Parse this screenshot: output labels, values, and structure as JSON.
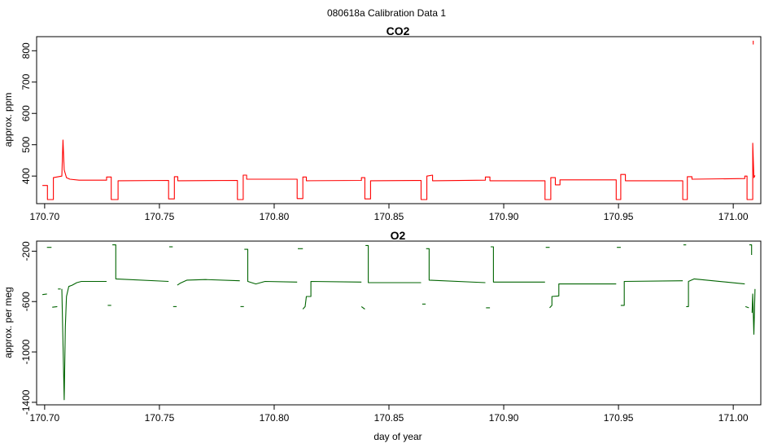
{
  "page_title": "080618a   Calibration Data 1",
  "chart_data": [
    {
      "type": "line",
      "title": "CO2",
      "xlabel": "",
      "ylabel": "approx. ppm",
      "xlim": [
        170.6965,
        171.012
      ],
      "ylim": [
        312,
        845
      ],
      "x_ticks": [
        170.7,
        170.75,
        170.8,
        170.85,
        170.9,
        170.95,
        171.0
      ],
      "x_tick_labels": [
        "170.70",
        "170.75",
        "170.80",
        "170.85",
        "170.90",
        "170.95",
        "171.00"
      ],
      "y_ticks": [
        400,
        500,
        600,
        700,
        800
      ],
      "y_tick_labels": [
        "400",
        "500",
        "600",
        "700",
        "800"
      ],
      "grid": false,
      "color": "#ff0000",
      "series": [
        {
          "segments": [
            [
              [
                170.699,
                370
              ],
              [
                170.7012,
                370
              ],
              [
                170.7012,
                325
              ],
              [
                170.7038,
                325
              ],
              [
                170.7038,
                395
              ],
              [
                170.706,
                398
              ],
              [
                170.7075,
                400
              ],
              [
                170.708,
                515
              ],
              [
                170.7085,
                420
              ],
              [
                170.7095,
                395
              ],
              [
                170.711,
                390
              ],
              [
                170.715,
                387
              ],
              [
                170.727,
                387
              ],
              [
                170.727,
                397
              ],
              [
                170.729,
                397
              ],
              [
                170.729,
                325
              ],
              [
                170.732,
                325
              ],
              [
                170.732,
                385
              ],
              [
                170.754,
                386
              ],
              [
                170.754,
                327
              ],
              [
                170.7565,
                327
              ],
              [
                170.7565,
                398
              ],
              [
                170.758,
                398
              ],
              [
                170.758,
                385
              ],
              [
                170.784,
                386
              ],
              [
                170.784,
                325
              ],
              [
                170.7865,
                325
              ],
              [
                170.7865,
                403
              ],
              [
                170.788,
                403
              ],
              [
                170.788,
                390
              ],
              [
                170.81,
                390
              ],
              [
                170.81,
                328
              ],
              [
                170.8125,
                328
              ],
              [
                170.8125,
                397
              ],
              [
                170.814,
                397
              ],
              [
                170.814,
                385
              ],
              [
                170.838,
                386
              ],
              [
                170.838,
                395
              ],
              [
                170.8395,
                395
              ],
              [
                170.8395,
                327
              ],
              [
                170.842,
                327
              ],
              [
                170.842,
                385
              ],
              [
                170.864,
                386
              ],
              [
                170.864,
                325
              ],
              [
                170.8665,
                325
              ],
              [
                170.8665,
                400
              ],
              [
                170.869,
                403
              ],
              [
                170.869,
                385
              ],
              [
                170.892,
                387
              ],
              [
                170.892,
                397
              ],
              [
                170.894,
                397
              ],
              [
                170.894,
                385
              ],
              [
                170.918,
                385
              ],
              [
                170.918,
                325
              ],
              [
                170.9205,
                325
              ],
              [
                170.9205,
                395
              ],
              [
                170.9225,
                395
              ],
              [
                170.9225,
                372
              ],
              [
                170.9245,
                372
              ],
              [
                170.9245,
                388
              ],
              [
                170.949,
                388
              ],
              [
                170.949,
                325
              ],
              [
                170.951,
                325
              ],
              [
                170.951,
                405
              ],
              [
                170.953,
                405
              ],
              [
                170.953,
                385
              ],
              [
                170.978,
                385
              ],
              [
                170.978,
                325
              ],
              [
                170.98,
                325
              ],
              [
                170.98,
                398
              ],
              [
                170.982,
                398
              ],
              [
                170.982,
                390
              ],
              [
                171.005,
                392
              ],
              [
                171.005,
                400
              ],
              [
                171.006,
                400
              ],
              [
                171.006,
                325
              ],
              [
                171.0085,
                325
              ],
              [
                171.0085,
                505
              ],
              [
                171.009,
                395
              ],
              [
                171.0095,
                402
              ]
            ],
            [
              [
                171.0087,
                820
              ],
              [
                171.0087,
                832
              ]
            ]
          ]
        }
      ]
    },
    {
      "type": "line",
      "title": "O2",
      "xlabel": "day of year",
      "ylabel": "approx. per meg",
      "xlim": [
        170.6965,
        171.012
      ],
      "ylim": [
        -1420,
        -120
      ],
      "x_ticks": [
        170.7,
        170.75,
        170.8,
        170.85,
        170.9,
        170.95,
        171.0
      ],
      "x_tick_labels": [
        "170.70",
        "170.75",
        "170.80",
        "170.85",
        "170.90",
        "170.95",
        "171.00"
      ],
      "y_ticks": [
        -200,
        -600,
        -1000,
        -1400
      ],
      "y_tick_labels": [
        "-200",
        "-600",
        "-1000",
        "-1400"
      ],
      "grid": false,
      "color": "#006400",
      "series": [
        {
          "segments": [
            [
              [
                170.699,
                -545
              ],
              [
                170.701,
                -540
              ]
            ],
            [
              [
                170.701,
                -170
              ],
              [
                170.703,
                -170
              ]
            ],
            [
              [
                170.7033,
                -645
              ],
              [
                170.7055,
                -640
              ]
            ],
            [
              [
                170.7058,
                -500
              ],
              [
                170.707,
                -500
              ]
            ],
            [
              [
                170.7075,
                -500
              ],
              [
                170.7085,
                -1380
              ],
              [
                170.709,
                -800
              ],
              [
                170.7095,
                -560
              ],
              [
                170.7105,
                -480
              ],
              [
                170.712,
                -470
              ],
              [
                170.714,
                -450
              ],
              [
                170.716,
                -440
              ],
              [
                170.727,
                -440
              ]
            ],
            [
              [
                170.7275,
                -630
              ],
              [
                170.729,
                -630
              ]
            ],
            [
              [
                170.7295,
                -150
              ],
              [
                170.731,
                -150
              ],
              [
                170.731,
                -420
              ],
              [
                170.754,
                -440
              ]
            ],
            [
              [
                170.7543,
                -165
              ],
              [
                170.7558,
                -165
              ]
            ],
            [
              [
                170.756,
                -640
              ],
              [
                170.7575,
                -640
              ]
            ],
            [
              [
                170.7578,
                -470
              ],
              [
                170.759,
                -455
              ],
              [
                170.762,
                -430
              ],
              [
                170.77,
                -425
              ],
              [
                170.785,
                -435
              ]
            ],
            [
              [
                170.7853,
                -640
              ],
              [
                170.7868,
                -640
              ]
            ],
            [
              [
                170.787,
                -185
              ],
              [
                170.7885,
                -185
              ],
              [
                170.7885,
                -440
              ],
              [
                170.792,
                -460
              ],
              [
                170.796,
                -440
              ],
              [
                170.81,
                -445
              ]
            ],
            [
              [
                170.8103,
                -180
              ],
              [
                170.8125,
                -180
              ]
            ],
            [
              [
                170.8125,
                -660
              ],
              [
                170.8135,
                -640
              ],
              [
                170.814,
                -560
              ],
              [
                170.816,
                -560
              ],
              [
                170.816,
                -440
              ],
              [
                170.838,
                -445
              ]
            ],
            [
              [
                170.838,
                -640
              ],
              [
                170.8395,
                -660
              ]
            ],
            [
              [
                170.8398,
                -155
              ],
              [
                170.841,
                -155
              ],
              [
                170.841,
                -450
              ],
              [
                170.864,
                -450
              ]
            ],
            [
              [
                170.8645,
                -620
              ],
              [
                170.866,
                -620
              ]
            ],
            [
              [
                170.8662,
                -180
              ],
              [
                170.8675,
                -180
              ],
              [
                170.8675,
                -430
              ],
              [
                170.892,
                -450
              ]
            ],
            [
              [
                170.8923,
                -650
              ],
              [
                170.894,
                -650
              ]
            ],
            [
              [
                170.8943,
                -165
              ],
              [
                170.8955,
                -165
              ],
              [
                170.8955,
                -445
              ],
              [
                170.918,
                -445
              ]
            ],
            [
              [
                170.9183,
                -170
              ],
              [
                170.92,
                -170
              ]
            ],
            [
              [
                170.92,
                -650
              ],
              [
                170.921,
                -630
              ],
              [
                170.921,
                -560
              ],
              [
                170.924,
                -555
              ],
              [
                170.924,
                -460
              ],
              [
                170.949,
                -460
              ]
            ],
            [
              [
                170.9493,
                -170
              ],
              [
                170.951,
                -170
              ]
            ],
            [
              [
                170.951,
                -630
              ],
              [
                170.9525,
                -630
              ],
              [
                170.9525,
                -440
              ],
              [
                170.978,
                -435
              ]
            ],
            [
              [
                170.9783,
                -150
              ],
              [
                170.9795,
                -150
              ]
            ],
            [
              [
                170.9795,
                -640
              ],
              [
                170.9805,
                -640
              ],
              [
                170.9805,
                -440
              ],
              [
                170.983,
                -420
              ],
              [
                171.005,
                -460
              ]
            ],
            [
              [
                171.0053,
                -640
              ],
              [
                171.0068,
                -650
              ]
            ],
            [
              [
                171.007,
                -150
              ],
              [
                171.008,
                -150
              ],
              [
                171.008,
                -230
              ]
            ],
            [
              [
                171.0082,
                -690
              ],
              [
                171.0085,
                -540
              ],
              [
                171.009,
                -860
              ],
              [
                171.0095,
                -500
              ]
            ]
          ]
        }
      ]
    }
  ]
}
